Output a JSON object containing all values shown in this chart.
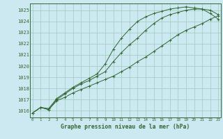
{
  "title": "Graphe pression niveau de la mer (hPa)",
  "bg_color": "#cce8f0",
  "grid_color": "#99ccbb",
  "line_color": "#336633",
  "x_values": [
    0,
    1,
    2,
    3,
    4,
    5,
    6,
    7,
    8,
    9,
    10,
    11,
    12,
    13,
    14,
    15,
    16,
    17,
    18,
    19,
    20,
    21,
    22,
    23
  ],
  "line1": [
    1015.8,
    1016.3,
    1016.1,
    1016.9,
    1017.2,
    1017.6,
    1017.9,
    1018.2,
    1018.5,
    1018.8,
    1019.1,
    1019.5,
    1019.9,
    1020.4,
    1020.8,
    1021.3,
    1021.8,
    1022.3,
    1022.8,
    1023.2,
    1023.5,
    1023.8,
    1024.2,
    1024.5
  ],
  "line2": [
    1015.8,
    1016.3,
    1016.1,
    1017.0,
    1017.5,
    1018.0,
    1018.4,
    1018.7,
    1019.1,
    1019.5,
    1020.4,
    1021.2,
    1021.9,
    1022.5,
    1023.2,
    1023.8,
    1024.3,
    1024.6,
    1024.8,
    1025.0,
    1025.1,
    1025.1,
    1025.0,
    1024.6
  ],
  "line3": [
    1015.8,
    1016.3,
    1016.2,
    1017.1,
    1017.6,
    1018.1,
    1018.5,
    1018.9,
    1019.3,
    1020.2,
    1021.5,
    1022.5,
    1023.3,
    1024.0,
    1024.4,
    1024.7,
    1024.9,
    1025.1,
    1025.2,
    1025.3,
    1025.2,
    1025.1,
    1024.7,
    1024.2
  ],
  "ylim": [
    1015.4,
    1025.6
  ],
  "yticks": [
    1016,
    1017,
    1018,
    1019,
    1020,
    1021,
    1022,
    1023,
    1024,
    1025
  ],
  "xticks": [
    0,
    1,
    2,
    3,
    4,
    5,
    6,
    7,
    8,
    9,
    10,
    11,
    12,
    13,
    14,
    15,
    16,
    17,
    18,
    19,
    20,
    21,
    22,
    23
  ],
  "xlim": [
    -0.3,
    23.3
  ]
}
